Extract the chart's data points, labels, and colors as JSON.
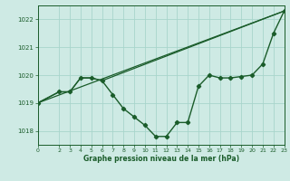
{
  "title": "Graphe pression niveau de la mer (hPa)",
  "background_color": "#ceeae4",
  "grid_color": "#a8d5cc",
  "line_color": "#1a5c2a",
  "xlim": [
    0,
    23
  ],
  "ylim": [
    1017.5,
    1022.5
  ],
  "yticks": [
    1018,
    1019,
    1020,
    1021,
    1022
  ],
  "xticks": [
    0,
    2,
    3,
    4,
    5,
    6,
    7,
    8,
    9,
    10,
    11,
    12,
    13,
    14,
    15,
    16,
    17,
    18,
    19,
    20,
    21,
    22,
    23
  ],
  "series": [
    {
      "x": [
        0,
        2,
        3,
        4,
        5,
        6,
        7,
        8,
        9,
        10,
        11,
        12,
        13,
        14,
        15,
        16,
        17,
        18,
        19,
        20,
        21,
        22,
        23
      ],
      "y": [
        1019.0,
        1019.4,
        1019.4,
        1019.9,
        1019.9,
        1019.8,
        1019.3,
        1018.8,
        1018.5,
        1018.2,
        1017.8,
        1017.8,
        1018.3,
        1018.3,
        1019.6,
        1020.0,
        1019.9,
        1019.9,
        1019.95,
        1020.0,
        1020.4,
        1021.5,
        1022.3
      ],
      "marker": "D",
      "markersize": 2.2,
      "linewidth": 1.0
    },
    {
      "x": [
        0,
        2,
        3,
        4,
        5,
        6,
        23
      ],
      "y": [
        1019.0,
        1019.4,
        1019.4,
        1019.9,
        1019.9,
        1019.8,
        1022.3
      ],
      "marker": null,
      "linewidth": 0.9
    },
    {
      "x": [
        0,
        23
      ],
      "y": [
        1019.0,
        1022.3
      ],
      "marker": null,
      "linewidth": 0.9
    }
  ]
}
